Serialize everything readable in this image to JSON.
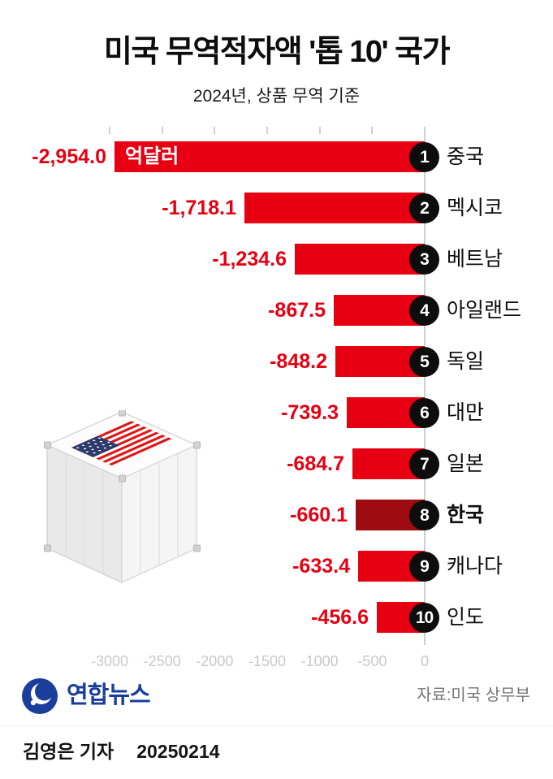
{
  "header": {
    "title": "미국 무역적자액 '톱 10' 국가",
    "subtitle": "2024년, 상품 무역 기준"
  },
  "chart_data": {
    "type": "bar",
    "orientation": "horizontal",
    "title": "미국 무역적자액 '톱 10' 국가",
    "subtitle": "2024년, 상품 무역 기준",
    "unit_label": "억달러",
    "categories": [
      "중국",
      "멕시코",
      "베트남",
      "아일랜드",
      "독일",
      "대만",
      "일본",
      "한국",
      "캐나다",
      "인도"
    ],
    "values": [
      -2954.0,
      -1718.1,
      -1234.6,
      -867.5,
      -848.2,
      -739.3,
      -684.7,
      -660.1,
      -633.4,
      -456.6
    ],
    "value_labels": [
      "-2,954.0",
      "-1,718.1",
      "-1,234.6",
      "-867.5",
      "-848.2",
      "-739.3",
      "-684.7",
      "-660.1",
      "-633.4",
      "-456.6"
    ],
    "ranks": [
      "1",
      "2",
      "3",
      "4",
      "5",
      "6",
      "7",
      "8",
      "9",
      "10"
    ],
    "highlight_index": 7,
    "highlight_category": "한국",
    "x_ticks": [
      {
        "value": -3000,
        "label": "-3000"
      },
      {
        "value": -2500,
        "label": "-2500"
      },
      {
        "value": -2000,
        "label": "-2000"
      },
      {
        "value": -1500,
        "label": "-1500"
      },
      {
        "value": -1000,
        "label": "-1000"
      },
      {
        "value": -500,
        "label": "-500"
      },
      {
        "value": 0,
        "label": "0"
      }
    ],
    "xlim": [
      -3000,
      0
    ],
    "legend": "none",
    "grid": "zero-line-only",
    "colors": {
      "bar": "#e60012",
      "bar_highlight": "#9e0b10",
      "value_text": "#e60012",
      "rank_circle": "#0d0d0d",
      "axis": "#c9c9c9"
    }
  },
  "illustration": {
    "name": "us-flag-shipping-container"
  },
  "footer": {
    "logo": "연합뉴스",
    "source": "자료:미국 상무부",
    "byline": "김영은 기자",
    "date": "20250214"
  }
}
